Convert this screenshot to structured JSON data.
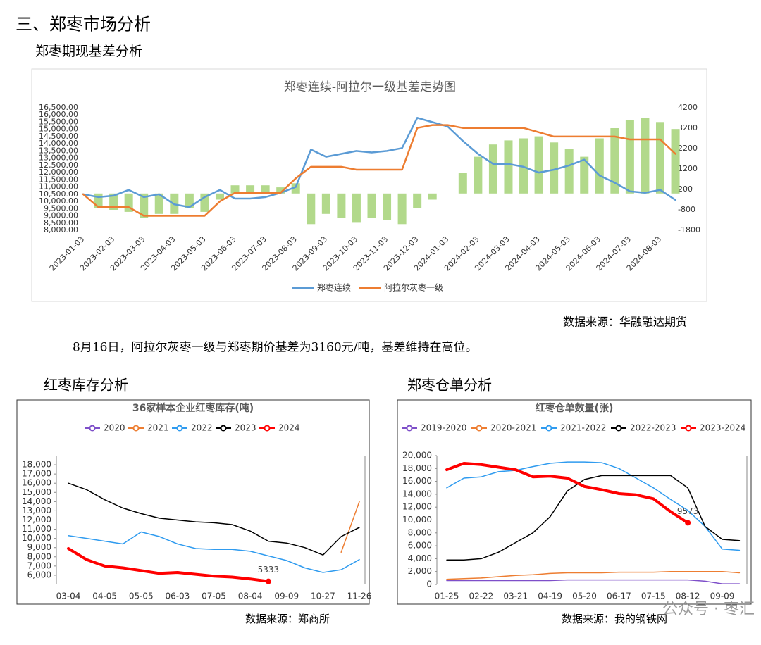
{
  "section_title": "三、郑枣市场分析",
  "basis": {
    "heading": "郑枣期现基差分析",
    "source": "数据来源：华融融达期货",
    "paragraph": "8月16日，阿拉尔灰枣一级与郑枣期价基差为3160元/吨，基差维持在高位。"
  },
  "inventory": {
    "heading": "红枣库存分析",
    "source": "数据来源：郑商所"
  },
  "receipts": {
    "heading": "郑枣仓单分析",
    "source": "数据来源：我的钢铁网"
  },
  "watermark": "公众号 · 枣汇",
  "chart_data": [
    {
      "type": "combo",
      "title": "郑枣连续-阿拉尔一级基差走势图",
      "categories": [
        "2023-01-03",
        null,
        "2023-02-03",
        null,
        "2023-03-03",
        null,
        "2023-04-03",
        null,
        "2023-05-03",
        null,
        "2023-06-03",
        null,
        "2023-07-03",
        null,
        "2023-08-03",
        null,
        "2023-09-03",
        null,
        "2023-10-03",
        null,
        "2023-11-03",
        null,
        "2023-12-03",
        null,
        "2024-01-03",
        null,
        "2024-02-03",
        null,
        "2024-03-03",
        null,
        "2024-04-03",
        null,
        "2024-05-03",
        null,
        "2024-06-03",
        null,
        "2024-07-03",
        null,
        "2024-08-03",
        null
      ],
      "series": [
        {
          "type": "bar",
          "axis": "y2",
          "color": "#9fd06e",
          "values": [
            0,
            -700,
            -800,
            -900,
            -1200,
            -1000,
            -1000,
            -700,
            -900,
            -300,
            400,
            400,
            400,
            300,
            500,
            -1500,
            -1000,
            -1200,
            -1400,
            -1200,
            -1300,
            -1500,
            -700,
            -300,
            0,
            1000,
            1800,
            2400,
            2600,
            2700,
            2800,
            2500,
            2200,
            1800,
            2700,
            3200,
            3600,
            3700,
            3500,
            3160
          ]
        },
        {
          "type": "line",
          "name": "郑枣连续",
          "color": "#5b9bd5",
          "values": [
            10500,
            10300,
            10400,
            10800,
            10300,
            10500,
            9800,
            9600,
            10300,
            10800,
            10200,
            10200,
            10300,
            10600,
            11000,
            13600,
            13100,
            13300,
            13500,
            13400,
            13500,
            13700,
            15800,
            15500,
            15200,
            14200,
            13300,
            12600,
            12600,
            12400,
            12000,
            12200,
            12500,
            12900,
            11800,
            11300,
            10700,
            10600,
            10800,
            10100
          ]
        },
        {
          "type": "line",
          "name": "阿拉尔灰枣一级",
          "color": "#ed7d31",
          "values": [
            10500,
            9600,
            9600,
            9600,
            9000,
            9000,
            9000,
            9000,
            9000,
            10000,
            10600,
            10600,
            10600,
            10600,
            11600,
            12400,
            12400,
            12400,
            12200,
            12200,
            12200,
            12200,
            15100,
            15300,
            15300,
            15100,
            15100,
            15100,
            15100,
            15100,
            14800,
            14500,
            14500,
            14500,
            14500,
            14500,
            14300,
            14300,
            14300,
            13300
          ]
        }
      ],
      "ylim": [
        8000,
        16500
      ],
      "yticks": [
        {
          "value": 8000,
          "label": "8,000.00"
        },
        {
          "value": 8500,
          "label": "8,500.00"
        },
        {
          "value": 9000,
          "label": "9,000.00"
        },
        {
          "value": 9500,
          "label": "9,500.00"
        },
        {
          "value": 10000,
          "label": "10,000.00"
        },
        {
          "value": 10500,
          "label": "10,500.00"
        },
        {
          "value": 11000,
          "label": "11,000.00"
        },
        {
          "value": 11500,
          "label": "11,500.00"
        },
        {
          "value": 12000,
          "label": "12,000.00"
        },
        {
          "value": 12500,
          "label": "12,500.00"
        },
        {
          "value": 13000,
          "label": "13,000.00"
        },
        {
          "value": 13500,
          "label": "13,500.00"
        },
        {
          "value": 14000,
          "label": "14,000.00"
        },
        {
          "value": 14500,
          "label": "14,500.00"
        },
        {
          "value": 15000,
          "label": "15,000.00"
        },
        {
          "value": 15500,
          "label": "15,500.00"
        },
        {
          "value": 16000,
          "label": "16,000.00"
        },
        {
          "value": 16500,
          "label": "16,500.00"
        }
      ],
      "y2lim": [
        -1800,
        4200
      ],
      "y2ticks": [
        -1800,
        -800,
        200,
        1200,
        2200,
        3200,
        4200
      ],
      "grid": false,
      "legend": "bottom"
    },
    {
      "type": "line",
      "title": "36家样本企业红枣库存(吨)",
      "categories": [
        "03-04",
        null,
        "04-05",
        null,
        "05-05",
        null,
        "06-03",
        null,
        "07-05",
        null,
        "08-04",
        null,
        "09-09",
        null,
        "10-27",
        null,
        "11-26"
      ],
      "series": [
        {
          "name": "2020",
          "color": "#7e4fc9",
          "values": [
            null,
            null,
            null,
            null,
            null,
            null,
            null,
            null,
            null,
            null,
            null,
            null,
            null,
            null,
            null,
            null,
            null
          ]
        },
        {
          "name": "2021",
          "color": "#ed7d31",
          "values": [
            null,
            null,
            null,
            null,
            null,
            null,
            null,
            null,
            null,
            null,
            null,
            null,
            null,
            null,
            null,
            8500,
            14000
          ]
        },
        {
          "name": "2022",
          "color": "#2f9bef",
          "values": [
            10300,
            10000,
            9700,
            9400,
            10700,
            10200,
            9400,
            8900,
            8800,
            8800,
            8600,
            8100,
            7600,
            6800,
            6300,
            6600,
            7700
          ]
        },
        {
          "name": "2023",
          "color": "#000000",
          "values": [
            16000,
            15300,
            14200,
            13300,
            12700,
            12200,
            12000,
            11800,
            11700,
            11500,
            10800,
            9700,
            9500,
            9000,
            8200,
            10200,
            11200
          ]
        },
        {
          "name": "2024",
          "color": "#ff0000",
          "width": 4,
          "label_last": true,
          "values": [
            8900,
            7700,
            7000,
            6800,
            6500,
            6200,
            6300,
            6100,
            5900,
            5800,
            5600,
            5333,
            null,
            null,
            null,
            null,
            null
          ]
        }
      ],
      "ylim": [
        5000,
        19000
      ],
      "yticks": [
        {
          "value": 6000,
          "label": "6,000"
        },
        {
          "value": 7000,
          "label": "7,000"
        },
        {
          "value": 8000,
          "label": "8,000"
        },
        {
          "value": 9000,
          "label": "9,000"
        },
        {
          "value": 10000,
          "label": "10,000"
        },
        {
          "value": 11000,
          "label": "11,000"
        },
        {
          "value": 12000,
          "label": "12,000"
        },
        {
          "value": 13000,
          "label": "13,000"
        },
        {
          "value": 14000,
          "label": "14,000"
        },
        {
          "value": 15000,
          "label": "15,000"
        },
        {
          "value": 16000,
          "label": "16,000"
        },
        {
          "value": 17000,
          "label": "17,000"
        },
        {
          "value": 18000,
          "label": "18,000"
        }
      ],
      "grid": false,
      "legend": "top"
    },
    {
      "type": "line",
      "title": "红枣仓单数量(张)",
      "categories": [
        "01-25",
        null,
        "02-22",
        null,
        "03-21",
        null,
        "04-19",
        null,
        "05-20",
        null,
        "06-17",
        null,
        "07-15",
        null,
        "08-12",
        null,
        "09-09",
        null
      ],
      "series": [
        {
          "name": "2019-2020",
          "color": "#7e4fc9",
          "values": [
            600,
            600,
            600,
            600,
            600,
            600,
            600,
            700,
            700,
            700,
            700,
            700,
            700,
            700,
            700,
            500,
            100,
            100
          ]
        },
        {
          "name": "2020-2021",
          "color": "#ed7d31",
          "values": [
            800,
            900,
            1000,
            1200,
            1400,
            1500,
            1700,
            1800,
            1800,
            1800,
            1900,
            1900,
            1900,
            2000,
            2000,
            2000,
            2000,
            1800
          ]
        },
        {
          "name": "2021-2022",
          "color": "#2f9bef",
          "values": [
            15000,
            16500,
            16700,
            17500,
            17700,
            18300,
            18800,
            19000,
            19000,
            18900,
            18000,
            16500,
            15000,
            13200,
            11500,
            9000,
            5500,
            5300
          ]
        },
        {
          "name": "2022-2023",
          "color": "#000000",
          "values": [
            3800,
            3800,
            4000,
            5000,
            6500,
            8000,
            10500,
            14500,
            16300,
            16900,
            16900,
            16900,
            16900,
            16900,
            15000,
            9000,
            7000,
            6800
          ]
        },
        {
          "name": "2023-2024",
          "color": "#ff0000",
          "width": 4,
          "label_last": true,
          "values": [
            17800,
            18800,
            18600,
            18200,
            17800,
            16700,
            16800,
            16500,
            15200,
            14700,
            14100,
            13900,
            13300,
            11300,
            9573,
            null,
            null,
            null
          ]
        }
      ],
      "ylim": [
        0,
        20000
      ],
      "yticks": [
        0,
        {
          "value": 2000,
          "label": "2,000"
        },
        {
          "value": 4000,
          "label": "4,000"
        },
        {
          "value": 6000,
          "label": "6,000"
        },
        {
          "value": 8000,
          "label": "8,000"
        },
        {
          "value": 10000,
          "label": "10,000"
        },
        {
          "value": 12000,
          "label": "12,000"
        },
        {
          "value": 14000,
          "label": "14,000"
        },
        {
          "value": 16000,
          "label": "16,000"
        },
        {
          "value": 18000,
          "label": "18,000"
        },
        {
          "value": 20000,
          "label": "20,000"
        }
      ],
      "grid": false,
      "legend": "top"
    }
  ]
}
